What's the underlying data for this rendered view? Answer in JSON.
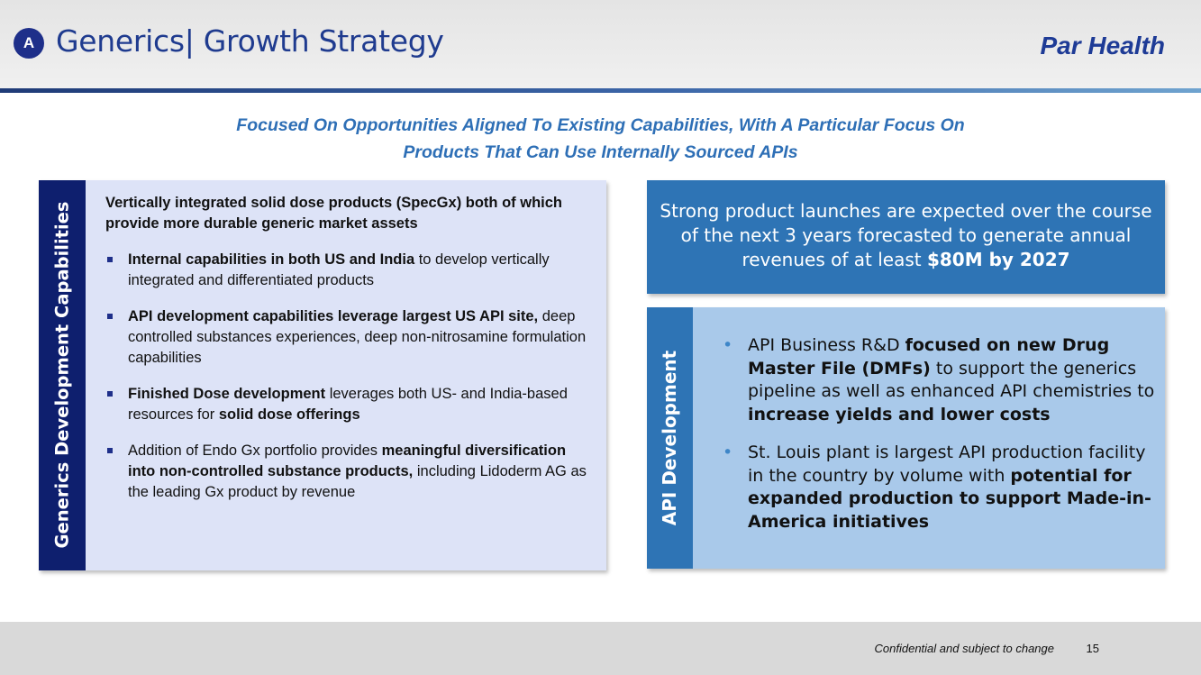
{
  "header": {
    "badge": "A",
    "title": "Generics| Growth Strategy",
    "brand": "Par Health"
  },
  "subtitle": {
    "line1": "Focused On Opportunities Aligned To Existing Capabilities, With A Particular Focus On",
    "line2": "Products That Can Use Internally Sourced APIs"
  },
  "left_panel": {
    "sidebar_label": "Generics Development Capabilities",
    "heading": "Vertically integrated solid dose products (SpecGx) both of which provide more durable generic market assets",
    "bullets": [
      {
        "bold": "Internal capabilities in both US and India",
        "text": " to develop vertically integrated and differentiated products"
      },
      {
        "bold": "API development capabilities leverage largest US API site,",
        "text": " deep controlled substances experiences, deep non-nitrosamine formulation capabilities"
      },
      {
        "bold1": "Finished Dose development",
        "text1": " leverages both US- and India-based resources for ",
        "bold2": "solid dose offerings"
      },
      {
        "text1": "Addition of Endo Gx portfolio provides ",
        "bold1": "meaningful diversification into non-controlled substance products,",
        "text2": " including Lidoderm AG as the leading Gx product by revenue"
      }
    ]
  },
  "right_top": {
    "text": "Strong product launches are expected over the course of the next 3 years forecasted to generate annual revenues of at least ",
    "bold": "$80M by 2027"
  },
  "right_panel": {
    "sidebar_label": "API Development",
    "bullets": [
      {
        "text1": "API Business R&D ",
        "bold1": "focused on new Drug Master File (DMFs)",
        "text2": " to support the generics pipeline as well as enhanced API chemistries to ",
        "bold2": "increase yields and lower costs"
      },
      {
        "text1": "St. Louis plant is largest API production facility in the country by volume with ",
        "bold1": "potential for expanded production to support Made-in-America initiatives"
      }
    ]
  },
  "footer": {
    "note": "Confidential and subject to change",
    "page": "15"
  }
}
